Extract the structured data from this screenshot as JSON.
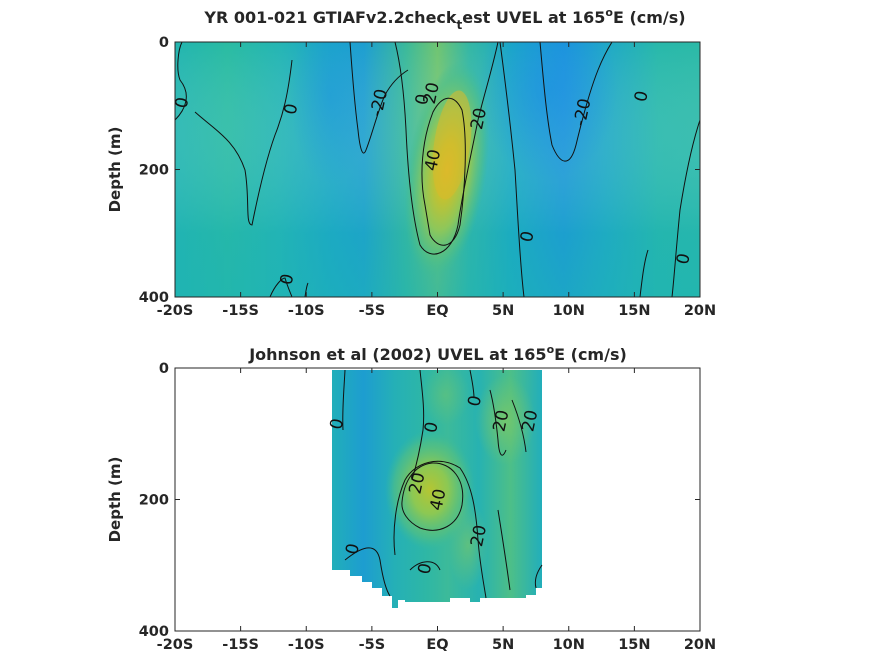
{
  "chart_data": [
    {
      "type": "heatmap",
      "title_main": "YR 001-021 GTIAFv2.2check",
      "title_sub": "t",
      "title_rest": "est UVEL at 165",
      "title_sup": "o",
      "title_end": "E (cm/s)",
      "ylabel": "Depth (m)",
      "xlabel": "",
      "x_ticks": [
        "-20S",
        "-15S",
        "-10S",
        "-5S",
        "EQ",
        "5N",
        "10N",
        "15N",
        "20N"
      ],
      "y_ticks": [
        "0",
        "200",
        "400"
      ],
      "xlim": [
        -20,
        20
      ],
      "ylim": [
        0,
        400
      ],
      "y_reversed": true,
      "colormap": "parula",
      "contour_labels": [
        {
          "text": "0",
          "lat": -19.5,
          "depth": 95
        },
        {
          "text": "0",
          "lat": -11.5,
          "depth": 372
        },
        {
          "text": "0",
          "lat": -11.2,
          "depth": 105
        },
        {
          "text": "-20",
          "lat": -4.5,
          "depth": 95
        },
        {
          "text": "0",
          "lat": -1.2,
          "depth": 90
        },
        {
          "text": "20",
          "lat": -0.5,
          "depth": 80
        },
        {
          "text": "40",
          "lat": -0.4,
          "depth": 185
        },
        {
          "text": "20",
          "lat": 3.1,
          "depth": 120
        },
        {
          "text": "0",
          "lat": 6.8,
          "depth": 305
        },
        {
          "text": "-20",
          "lat": 11.0,
          "depth": 110
        },
        {
          "text": "0",
          "lat": 15.5,
          "depth": 85
        },
        {
          "text": "0",
          "lat": 18.7,
          "depth": 340
        }
      ],
      "hotspot": {
        "lat": 0.6,
        "depth": 145,
        "max_value": 50
      }
    },
    {
      "type": "heatmap",
      "title_main": "Johnson et al (2002) UVEL at 165",
      "title_sup": "o",
      "title_end": "E (cm/s)",
      "ylabel": "Depth (m)",
      "xlabel": "",
      "x_ticks": [
        "-20S",
        "-15S",
        "-10S",
        "-5S",
        "EQ",
        "5N",
        "10N",
        "15N",
        "20N"
      ],
      "y_ticks": [
        "0",
        "200",
        "400"
      ],
      "xlim": [
        -20,
        20
      ],
      "ylim": [
        0,
        400
      ],
      "y_reversed": true,
      "colormap": "parula",
      "data_extent": {
        "lat": [
          -8,
          8
        ],
        "depth": [
          0,
          350
        ]
      },
      "contour_labels": [
        {
          "text": "0",
          "lat": -7.7,
          "depth": 85
        },
        {
          "text": "0",
          "lat": -0.5,
          "depth": 90
        },
        {
          "text": "0",
          "lat": 2.8,
          "depth": 50
        },
        {
          "text": "20",
          "lat": 4.8,
          "depth": 80
        },
        {
          "text": "20",
          "lat": 7.0,
          "depth": 80
        },
        {
          "text": "20",
          "lat": -1.6,
          "depth": 175
        },
        {
          "text": "40",
          "lat": 0.0,
          "depth": 200
        },
        {
          "text": "20",
          "lat": 3.1,
          "depth": 255
        },
        {
          "text": "0",
          "lat": -6.5,
          "depth": 275
        },
        {
          "text": "0",
          "lat": -1.0,
          "depth": 305
        }
      ],
      "hotspot": {
        "lat": 0.3,
        "depth": 185,
        "max_value": 45
      }
    }
  ]
}
